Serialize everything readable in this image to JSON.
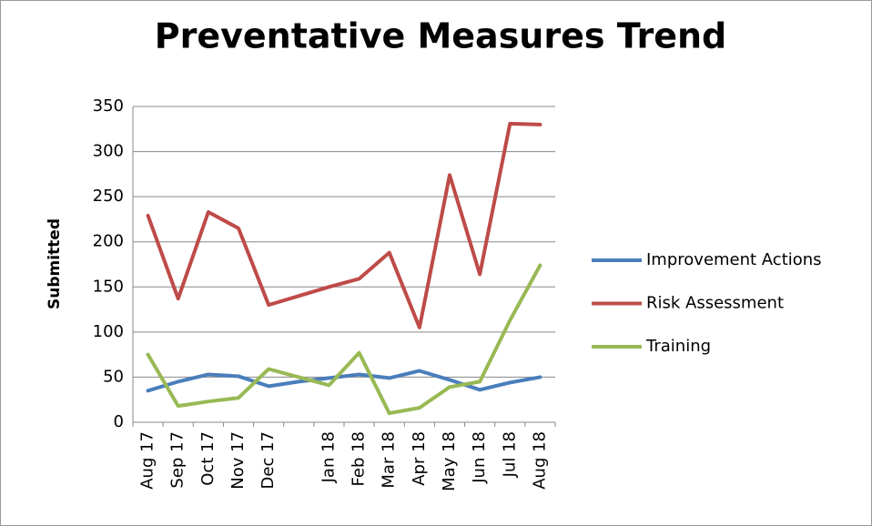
{
  "chart_data": {
    "type": "line",
    "title": "Preventative Measures Trend",
    "y_label": "Submitted",
    "categories": [
      "Aug 17",
      "Sep 17",
      "Oct 17",
      "Nov 17",
      "Dec 17",
      null,
      "Jan 18",
      "Feb 18",
      "Mar 18",
      "Apr 18",
      "May 18",
      "Jun 18",
      "Jul 18",
      "Aug 18"
    ],
    "series": [
      {
        "name": "Improvement Actions",
        "color": "#4a7ebb",
        "values": [
          35,
          45,
          53,
          51,
          40,
          45,
          49,
          53,
          49,
          57,
          47,
          36,
          44,
          50
        ]
      },
      {
        "name": "Risk Assessment",
        "color": "#be4b48",
        "values": [
          229,
          137,
          233,
          215,
          130,
          140,
          150,
          159,
          188,
          105,
          274,
          164,
          331,
          330
        ]
      },
      {
        "name": "Training",
        "color": "#98b954",
        "values": [
          75,
          18,
          23,
          27,
          59,
          50,
          41,
          77,
          10,
          16,
          39,
          45,
          113,
          174
        ]
      }
    ],
    "ylim": [
      0,
      350
    ],
    "yticks": [
      0,
      50,
      100,
      150,
      200,
      250,
      300,
      350
    ],
    "grid": true,
    "legend": "right"
  }
}
